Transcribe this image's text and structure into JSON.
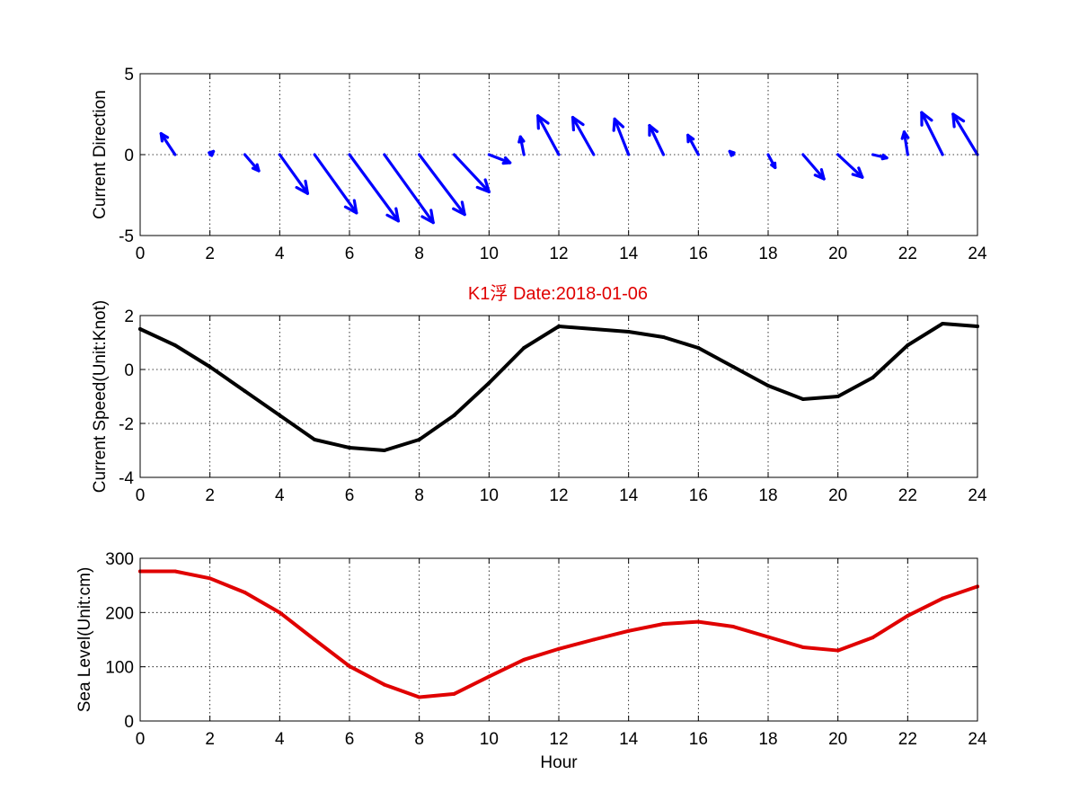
{
  "title": "K1浮   Date:2018-01-06",
  "title_color": "#e00000",
  "chart_data": [
    {
      "type": "quiver",
      "ylabel": "Current Direction",
      "xlim": [
        0,
        24
      ],
      "ylim": [
        -5,
        5
      ],
      "xticks": [
        "0",
        "2",
        "4",
        "6",
        "8",
        "10",
        "12",
        "14",
        "16",
        "18",
        "20",
        "22",
        "24"
      ],
      "yticks": [
        "-5",
        "0",
        "5"
      ],
      "grid": true,
      "color": "#0000ff",
      "arrows": [
        {
          "x": 0,
          "u": 0.0,
          "v": 0.0
        },
        {
          "x": 1,
          "u": -0.4,
          "v": 1.3
        },
        {
          "x": 2,
          "u": 0.1,
          "v": 0.2
        },
        {
          "x": 3,
          "u": 0.4,
          "v": -1.0
        },
        {
          "x": 4,
          "u": 0.8,
          "v": -2.4
        },
        {
          "x": 5,
          "u": 1.2,
          "v": -3.6
        },
        {
          "x": 6,
          "u": 1.4,
          "v": -4.1
        },
        {
          "x": 7,
          "u": 1.4,
          "v": -4.2
        },
        {
          "x": 8,
          "u": 1.3,
          "v": -3.7
        },
        {
          "x": 9,
          "u": 1.0,
          "v": -2.3
        },
        {
          "x": 10,
          "u": 0.6,
          "v": -0.5
        },
        {
          "x": 11,
          "u": -0.1,
          "v": 1.1
        },
        {
          "x": 12,
          "u": -0.6,
          "v": 2.4
        },
        {
          "x": 13,
          "u": -0.6,
          "v": 2.3
        },
        {
          "x": 14,
          "u": -0.4,
          "v": 2.2
        },
        {
          "x": 15,
          "u": -0.4,
          "v": 1.8
        },
        {
          "x": 16,
          "u": -0.3,
          "v": 1.2
        },
        {
          "x": 17,
          "u": -0.1,
          "v": 0.2
        },
        {
          "x": 18,
          "u": 0.2,
          "v": -0.8
        },
        {
          "x": 19,
          "u": 0.6,
          "v": -1.5
        },
        {
          "x": 20,
          "u": 0.7,
          "v": -1.4
        },
        {
          "x": 21,
          "u": 0.4,
          "v": -0.2
        },
        {
          "x": 22,
          "u": -0.1,
          "v": 1.4
        },
        {
          "x": 23,
          "u": -0.6,
          "v": 2.6
        },
        {
          "x": 24,
          "u": -0.7,
          "v": 2.5
        }
      ]
    },
    {
      "type": "line",
      "ylabel": "Current Speed(Unit:Knot)",
      "xlim": [
        0,
        24
      ],
      "ylim": [
        -4,
        2
      ],
      "xticks": [
        "0",
        "2",
        "4",
        "6",
        "8",
        "10",
        "12",
        "14",
        "16",
        "18",
        "20",
        "22",
        "24"
      ],
      "yticks": [
        "-4",
        "-2",
        "0",
        "2"
      ],
      "grid": true,
      "color": "#000000",
      "x": [
        0,
        1,
        2,
        3,
        4,
        5,
        6,
        7,
        8,
        9,
        10,
        11,
        12,
        13,
        14,
        15,
        16,
        17,
        18,
        19,
        20,
        21,
        22,
        23,
        24
      ],
      "y": [
        1.5,
        0.9,
        0.1,
        -0.8,
        -1.7,
        -2.6,
        -2.9,
        -3.0,
        -2.6,
        -1.7,
        -0.5,
        0.8,
        1.6,
        1.5,
        1.4,
        1.2,
        0.8,
        0.1,
        -0.6,
        -1.1,
        -1.0,
        -0.3,
        0.9,
        1.7,
        1.6
      ]
    },
    {
      "type": "line",
      "ylabel": "Sea Level(Unit:cm)",
      "xlabel": "Hour",
      "xlim": [
        0,
        24
      ],
      "ylim": [
        0,
        300
      ],
      "xticks": [
        "0",
        "2",
        "4",
        "6",
        "8",
        "10",
        "12",
        "14",
        "16",
        "18",
        "20",
        "22",
        "24"
      ],
      "yticks": [
        "0",
        "100",
        "200",
        "300"
      ],
      "grid": true,
      "color": "#e00000",
      "x": [
        0,
        1,
        2,
        3,
        4,
        5,
        6,
        7,
        8,
        9,
        10,
        11,
        12,
        13,
        14,
        15,
        16,
        17,
        18,
        19,
        20,
        21,
        22,
        23,
        24
      ],
      "y": [
        276,
        276,
        263,
        237,
        200,
        150,
        101,
        67,
        44,
        50,
        82,
        113,
        133,
        150,
        166,
        179,
        183,
        174,
        155,
        136,
        130,
        154,
        194,
        226,
        248
      ]
    }
  ]
}
